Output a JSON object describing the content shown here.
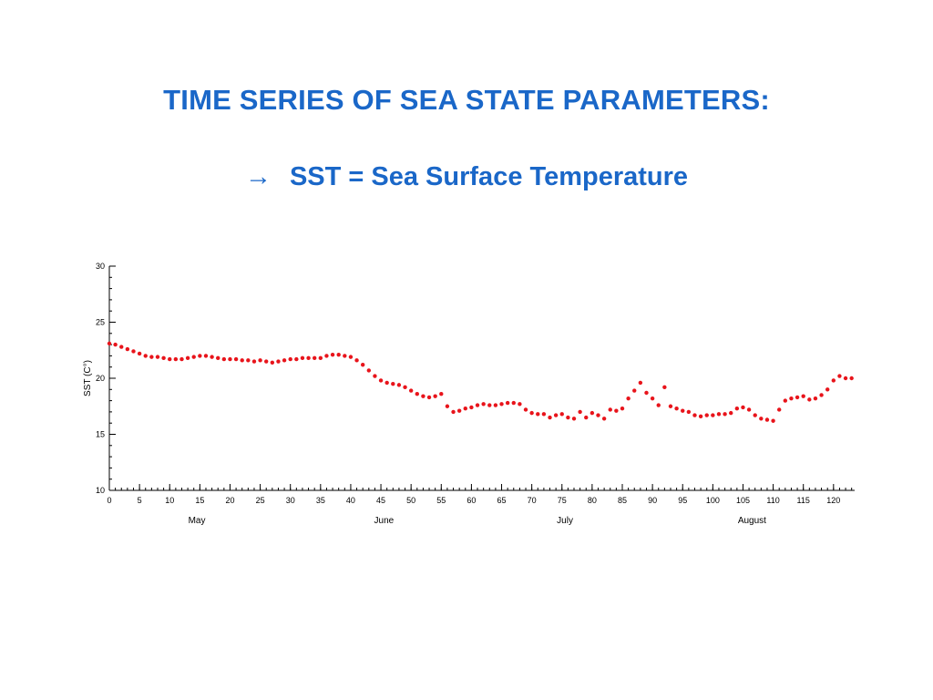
{
  "slide": {
    "title": "TIME SERIES OF SEA STATE PARAMETERS:",
    "subtitle_arrow": "→",
    "subtitle": "SST = Sea Surface Temperature"
  },
  "colors": {
    "heading": "#1a67c8",
    "series": "#e8141b",
    "axis": "#000000"
  },
  "chart_data": {
    "type": "scatter",
    "title": "",
    "ylabel": "SST (C°)",
    "xlabel": "",
    "xlim": [
      0,
      123.5
    ],
    "ylim": [
      10,
      30
    ],
    "x_ticks": [
      0,
      5,
      10,
      15,
      20,
      25,
      30,
      35,
      40,
      45,
      50,
      55,
      60,
      65,
      70,
      75,
      80,
      85,
      90,
      95,
      100,
      105,
      110,
      115,
      120
    ],
    "y_ticks": [
      10,
      15,
      20,
      25,
      30
    ],
    "month_labels": [
      {
        "label": "May",
        "x": 14.5
      },
      {
        "label": "June",
        "x": 45.5
      },
      {
        "label": "July",
        "x": 75.5
      },
      {
        "label": "August",
        "x": 106.5
      }
    ],
    "grid": false,
    "legend": "none",
    "series": [
      {
        "x": [
          0,
          1,
          2,
          3,
          4,
          5,
          6,
          7,
          8,
          9,
          10,
          11,
          12,
          13,
          14,
          15,
          16,
          17,
          18,
          19,
          20,
          21,
          22,
          23,
          24,
          25,
          26,
          27,
          28,
          29,
          30,
          31,
          32,
          33,
          34,
          35,
          36,
          37,
          38,
          39,
          40,
          41,
          42,
          43,
          44,
          45,
          46,
          47,
          48,
          49,
          50,
          51,
          52,
          53,
          54,
          55,
          56,
          57,
          58,
          59,
          60,
          61,
          62,
          63,
          64,
          65,
          66,
          67,
          68,
          69,
          70,
          71,
          72,
          73,
          74,
          75,
          76,
          77,
          78,
          79,
          80,
          81,
          82,
          83,
          84,
          85,
          86,
          87,
          88,
          89,
          90,
          91,
          92,
          93,
          94,
          95,
          96,
          97,
          98,
          99,
          100,
          101,
          102,
          103,
          104,
          105,
          106,
          107,
          108,
          109,
          110,
          111,
          112,
          113,
          114,
          115,
          116,
          117,
          118,
          119,
          120,
          121,
          122,
          123
        ],
        "y": [
          23.1,
          23.0,
          22.8,
          22.6,
          22.4,
          22.2,
          22.0,
          21.9,
          21.9,
          21.8,
          21.7,
          21.7,
          21.7,
          21.8,
          21.9,
          22.0,
          22.0,
          21.9,
          21.8,
          21.7,
          21.7,
          21.7,
          21.6,
          21.6,
          21.5,
          21.6,
          21.5,
          21.4,
          21.5,
          21.6,
          21.7,
          21.7,
          21.8,
          21.8,
          21.8,
          21.8,
          22.0,
          22.1,
          22.1,
          22.0,
          21.9,
          21.6,
          21.2,
          20.7,
          20.2,
          19.8,
          19.6,
          19.5,
          19.4,
          19.2,
          18.9,
          18.6,
          18.4,
          18.3,
          18.4,
          18.6,
          17.5,
          17.0,
          17.1,
          17.3,
          17.4,
          17.6,
          17.7,
          17.6,
          17.6,
          17.7,
          17.8,
          17.8,
          17.7,
          17.2,
          16.9,
          16.8,
          16.8,
          16.5,
          16.7,
          16.8,
          16.5,
          16.4,
          17.0,
          16.5,
          16.9,
          16.7,
          16.4,
          17.2,
          17.1,
          17.3,
          18.2,
          18.9,
          19.6,
          18.7,
          18.2,
          17.6,
          19.2,
          17.5,
          17.3,
          17.1,
          17.0,
          16.7,
          16.6,
          16.7,
          16.7,
          16.8,
          16.8,
          16.9,
          17.3,
          17.4,
          17.2,
          16.7,
          16.4,
          16.3,
          16.2,
          17.2,
          18.0,
          18.2,
          18.3,
          18.4,
          18.1,
          18.2,
          18.5,
          19.0,
          19.8,
          20.2,
          20.0,
          20.0
        ]
      }
    ]
  }
}
